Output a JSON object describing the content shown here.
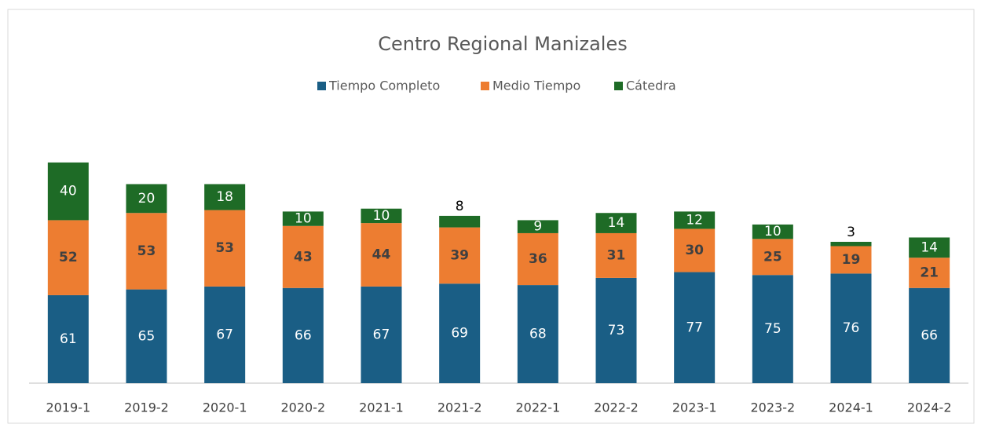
{
  "chart_data": {
    "type": "bar",
    "stacked": true,
    "title": "Centro Regional Manizales",
    "categories": [
      "2019-1",
      "2019-2",
      "2020-1",
      "2020-2",
      "2021-1",
      "2021-2",
      "2022-1",
      "2022-2",
      "2023-1",
      "2023-2",
      "2024-1",
      "2024-2"
    ],
    "series": [
      {
        "name": "Tiempo Completo",
        "color": "#1a5e85",
        "values": [
          61,
          65,
          67,
          66,
          67,
          69,
          68,
          73,
          77,
          75,
          76,
          66
        ]
      },
      {
        "name": "Medio Tiempo",
        "color": "#ed7d31",
        "values": [
          52,
          53,
          53,
          43,
          44,
          39,
          36,
          31,
          30,
          25,
          19,
          21
        ]
      },
      {
        "name": "Cátedra",
        "color": "#1e6b26",
        "values": [
          40,
          20,
          18,
          10,
          10,
          8,
          9,
          14,
          12,
          10,
          3,
          14
        ]
      }
    ],
    "legend": "top"
  }
}
